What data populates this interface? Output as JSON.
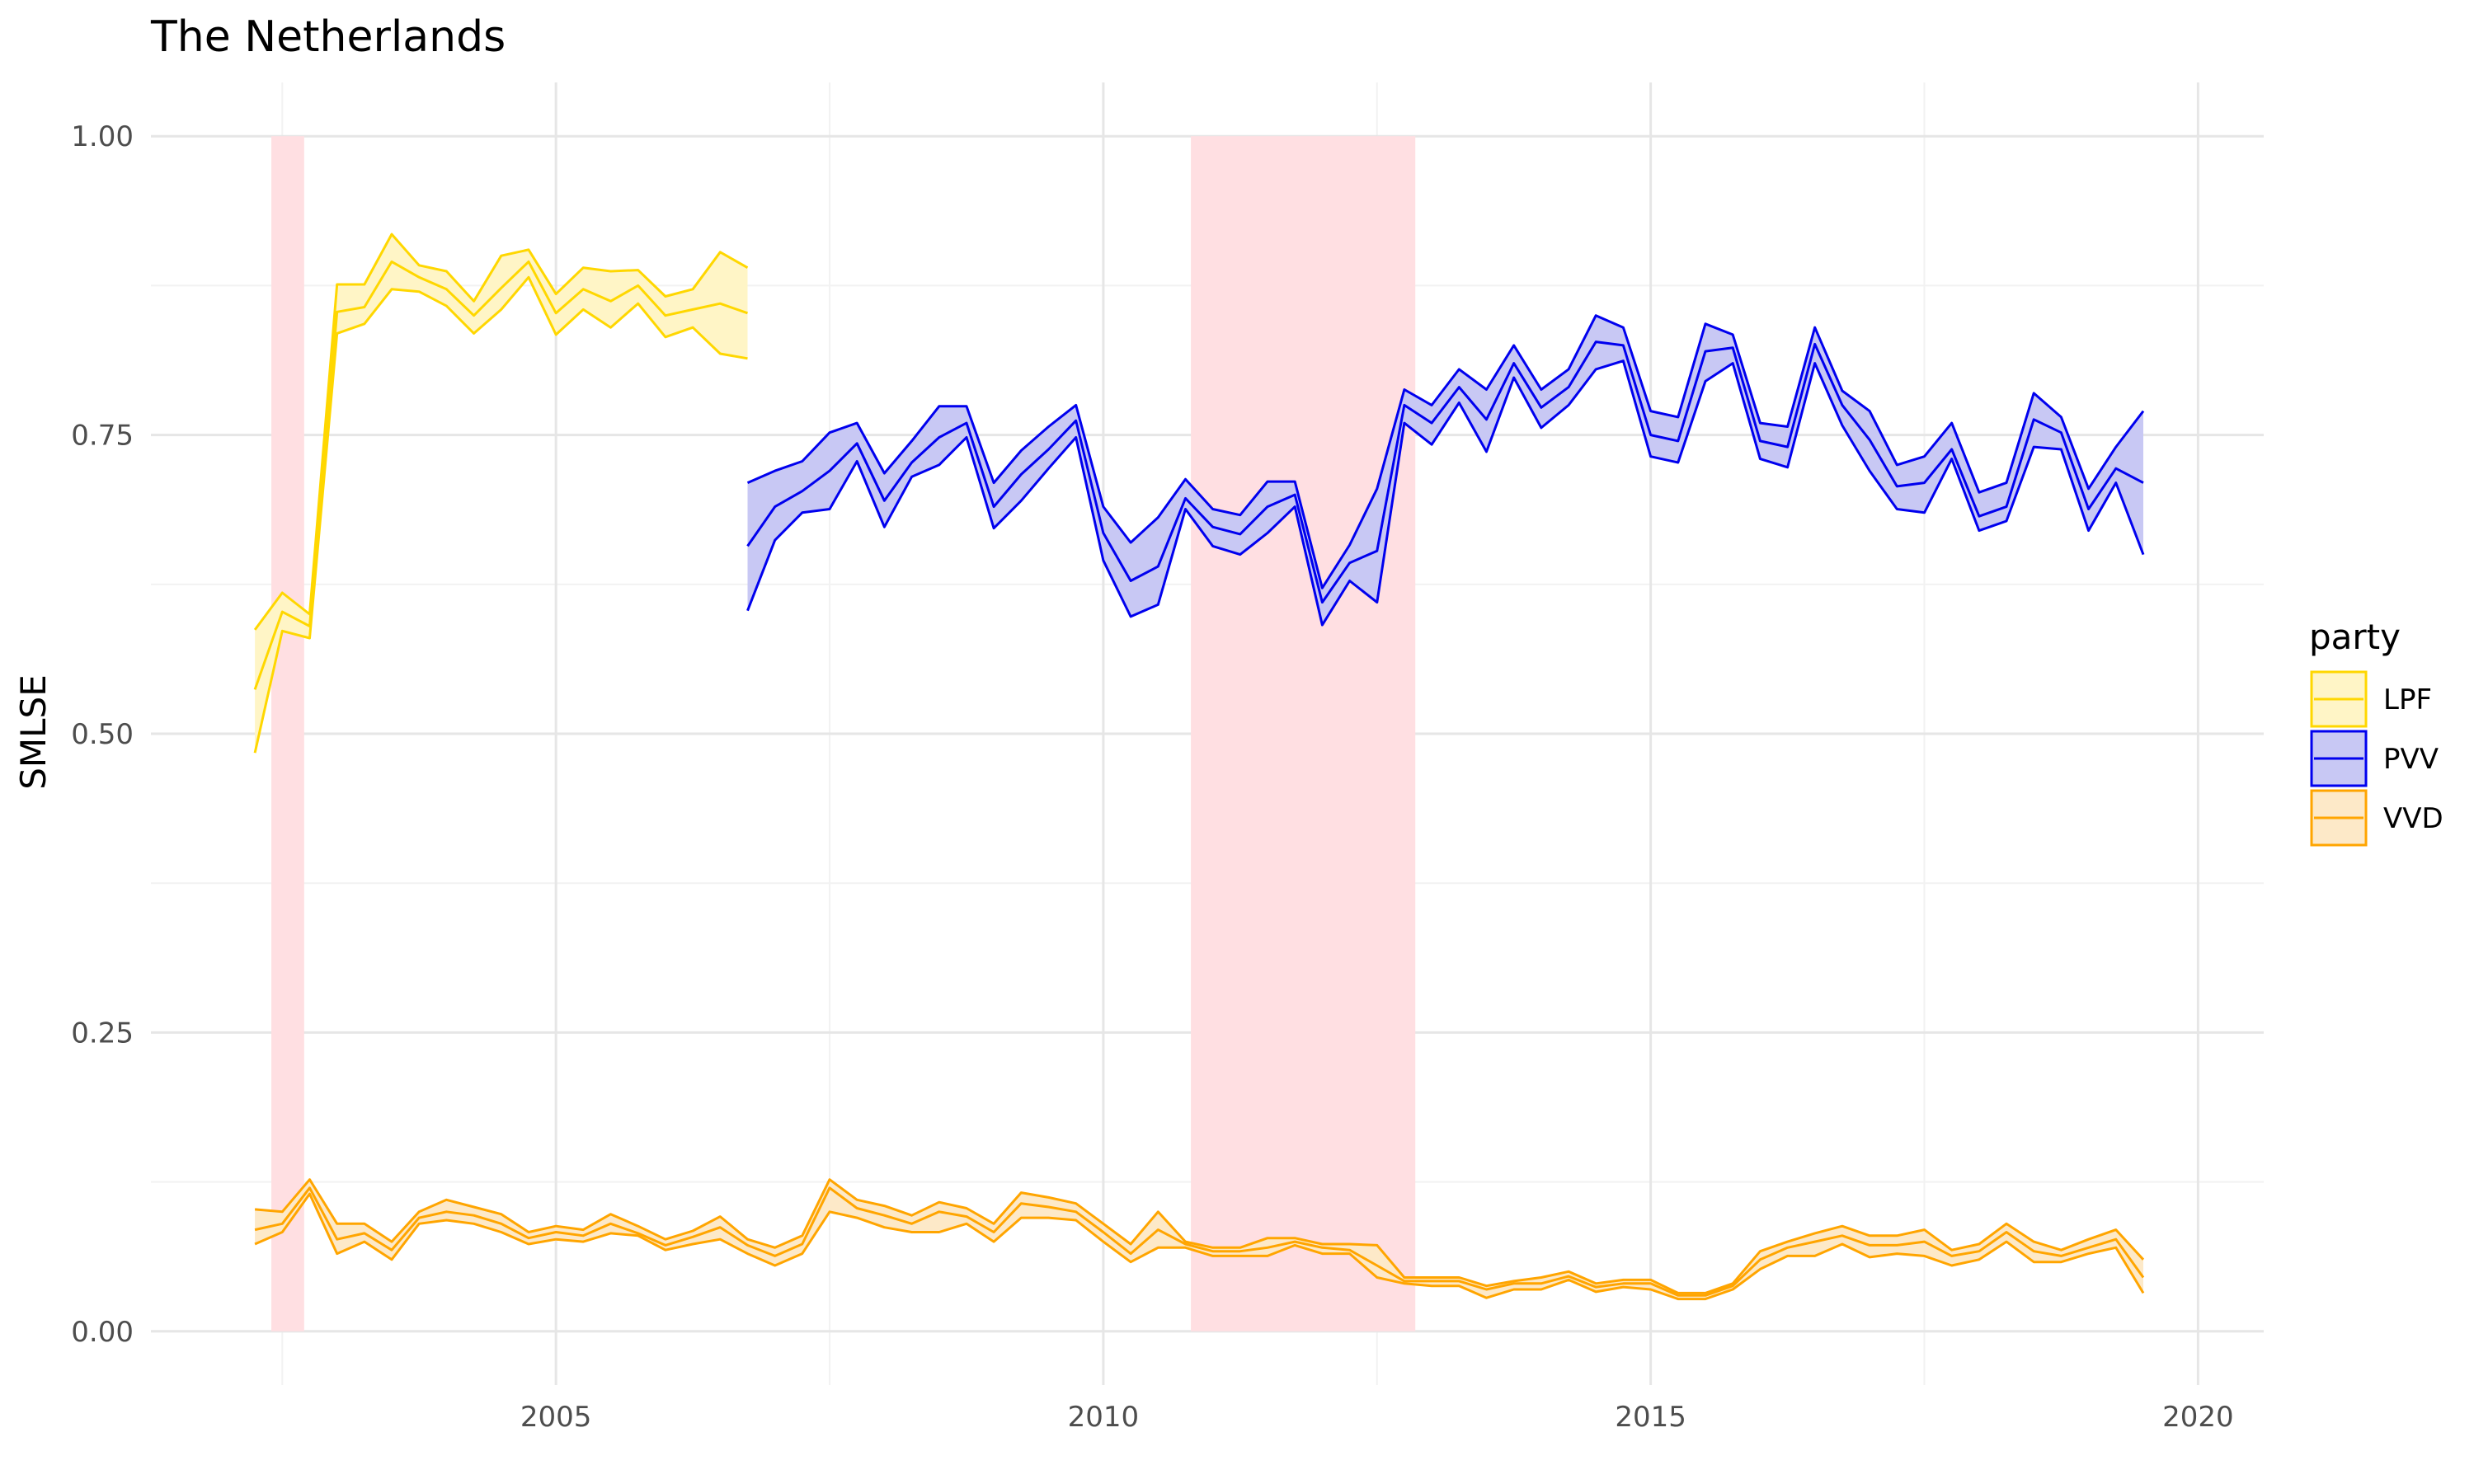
{
  "chart_data": {
    "type": "area",
    "title": "The Netherlands",
    "xlabel": "",
    "ylabel": "SMLSE",
    "xlim": [
      2001.3,
      2020.6
    ],
    "ylim": [
      -0.045,
      1.045
    ],
    "x_ticks": [
      2005,
      2010,
      2015,
      2020
    ],
    "x_tick_labels": [
      "2005",
      "2010",
      "2015",
      "2020"
    ],
    "y_ticks": [
      0,
      0.25,
      0.5,
      0.75,
      1
    ],
    "y_tick_labels": [
      "0.00",
      "0.25",
      "0.50",
      "0.75",
      "1.00"
    ],
    "grid": true,
    "legend": {
      "title": "party",
      "position": "right"
    },
    "shaded_periods": [
      {
        "start": 2002.4,
        "end": 2002.7,
        "color": "#ffdfe2"
      },
      {
        "start": 2010.8,
        "end": 2012.85,
        "color": "#ffdfe2"
      }
    ],
    "series": [
      {
        "name": "LPF",
        "color": "#ffd700",
        "fill": "#fff5c6",
        "x": [
          2002.25,
          2002.5,
          2002.75,
          2003.0,
          2003.25,
          2003.5,
          2003.75,
          2004.0,
          2004.25,
          2004.5,
          2004.75,
          2005.0,
          2005.25,
          2005.5,
          2005.75,
          2006.0,
          2006.25,
          2006.5,
          2006.75
        ],
        "upper": [
          0.587,
          0.618,
          0.6,
          0.876,
          0.876,
          0.918,
          0.892,
          0.887,
          0.862,
          0.9,
          0.905,
          0.868,
          0.89,
          0.887,
          0.888,
          0.866,
          0.872,
          0.903,
          0.89
        ],
        "mid": [
          0.537,
          0.602,
          0.59,
          0.853,
          0.857,
          0.895,
          0.882,
          0.872,
          0.85,
          0.873,
          0.895,
          0.852,
          0.872,
          0.862,
          0.875,
          0.85,
          0.855,
          0.86,
          0.852
        ],
        "lower": [
          0.484,
          0.586,
          0.58,
          0.835,
          0.843,
          0.872,
          0.87,
          0.858,
          0.835,
          0.855,
          0.882,
          0.834,
          0.855,
          0.84,
          0.86,
          0.832,
          0.84,
          0.818,
          0.814
        ]
      },
      {
        "name": "PVV",
        "color": "#0000ee",
        "fill": "#c8c8f4",
        "x": [
          2006.75,
          2007.0,
          2007.25,
          2007.5,
          2007.75,
          2008.0,
          2008.25,
          2008.5,
          2008.75,
          2009.0,
          2009.25,
          2009.5,
          2009.75,
          2010.0,
          2010.25,
          2010.5,
          2010.75,
          2011.0,
          2011.25,
          2011.5,
          2011.75,
          2012.0,
          2012.25,
          2012.5,
          2012.75,
          2013.0,
          2013.25,
          2013.5,
          2013.75,
          2014.0,
          2014.25,
          2014.5,
          2014.75,
          2015.0,
          2015.25,
          2015.5,
          2015.75,
          2016.0,
          2016.25,
          2016.5,
          2016.75,
          2017.0,
          2017.25,
          2017.5,
          2017.75,
          2018.0,
          2018.25,
          2018.5,
          2018.75,
          2019.0,
          2019.25,
          2019.5
        ],
        "upper": [
          0.71,
          0.72,
          0.728,
          0.752,
          0.76,
          0.718,
          0.745,
          0.774,
          0.774,
          0.71,
          0.737,
          0.757,
          0.775,
          0.69,
          0.66,
          0.681,
          0.713,
          0.688,
          0.683,
          0.711,
          0.711,
          0.622,
          0.658,
          0.705,
          0.788,
          0.775,
          0.805,
          0.788,
          0.825,
          0.788,
          0.805,
          0.85,
          0.84,
          0.77,
          0.765,
          0.843,
          0.834,
          0.76,
          0.757,
          0.84,
          0.787,
          0.77,
          0.725,
          0.732,
          0.76,
          0.702,
          0.71,
          0.785,
          0.765,
          0.705,
          0.74,
          0.77
        ],
        "mid": [
          0.657,
          0.69,
          0.703,
          0.72,
          0.743,
          0.695,
          0.727,
          0.748,
          0.76,
          0.69,
          0.717,
          0.738,
          0.762,
          0.668,
          0.628,
          0.64,
          0.697,
          0.673,
          0.667,
          0.69,
          0.7,
          0.61,
          0.643,
          0.653,
          0.775,
          0.76,
          0.79,
          0.763,
          0.81,
          0.773,
          0.79,
          0.828,
          0.825,
          0.75,
          0.745,
          0.82,
          0.823,
          0.745,
          0.74,
          0.826,
          0.775,
          0.746,
          0.707,
          0.71,
          0.738,
          0.682,
          0.69,
          0.763,
          0.752,
          0.688,
          0.722,
          0.71
        ],
        "lower": [
          0.603,
          0.662,
          0.685,
          0.688,
          0.728,
          0.673,
          0.715,
          0.725,
          0.748,
          0.672,
          0.695,
          0.722,
          0.748,
          0.645,
          0.598,
          0.608,
          0.688,
          0.657,
          0.65,
          0.668,
          0.69,
          0.591,
          0.628,
          0.61,
          0.76,
          0.742,
          0.777,
          0.736,
          0.798,
          0.756,
          0.775,
          0.805,
          0.812,
          0.732,
          0.727,
          0.795,
          0.81,
          0.73,
          0.723,
          0.81,
          0.758,
          0.72,
          0.688,
          0.685,
          0.73,
          0.67,
          0.678,
          0.74,
          0.738,
          0.67,
          0.71,
          0.65
        ]
      },
      {
        "name": "VVD",
        "color": "#ffa500",
        "fill": "#fde9c8",
        "x": [
          2002.25,
          2002.5,
          2002.75,
          2003.0,
          2003.25,
          2003.5,
          2003.75,
          2004.0,
          2004.25,
          2004.5,
          2004.75,
          2005.0,
          2005.25,
          2005.5,
          2005.75,
          2006.0,
          2006.25,
          2006.5,
          2006.75,
          2007.0,
          2007.25,
          2007.5,
          2007.75,
          2008.0,
          2008.25,
          2008.5,
          2008.75,
          2009.0,
          2009.25,
          2009.5,
          2009.75,
          2010.0,
          2010.25,
          2010.5,
          2010.75,
          2011.0,
          2011.25,
          2011.5,
          2011.75,
          2012.0,
          2012.25,
          2012.5,
          2012.75,
          2013.0,
          2013.25,
          2013.5,
          2013.75,
          2014.0,
          2014.25,
          2014.5,
          2014.75,
          2015.0,
          2015.25,
          2015.5,
          2015.75,
          2016.0,
          2016.25,
          2016.5,
          2016.75,
          2017.0,
          2017.25,
          2017.5,
          2017.75,
          2018.0,
          2018.25,
          2018.5,
          2018.75,
          2019.0,
          2019.25,
          2019.5
        ],
        "upper": [
          0.102,
          0.1,
          0.127,
          0.09,
          0.09,
          0.075,
          0.1,
          0.11,
          0.104,
          0.098,
          0.083,
          0.088,
          0.085,
          0.098,
          0.088,
          0.077,
          0.084,
          0.096,
          0.077,
          0.07,
          0.08,
          0.127,
          0.11,
          0.105,
          0.097,
          0.108,
          0.103,
          0.09,
          0.116,
          0.112,
          0.107,
          0.09,
          0.073,
          0.1,
          0.075,
          0.07,
          0.07,
          0.078,
          0.078,
          0.073,
          0.073,
          0.072,
          0.045,
          0.045,
          0.045,
          0.038,
          0.042,
          0.045,
          0.05,
          0.04,
          0.043,
          0.043,
          0.032,
          0.032,
          0.04,
          0.067,
          0.075,
          0.082,
          0.088,
          0.08,
          0.08,
          0.085,
          0.068,
          0.073,
          0.09,
          0.075,
          0.068,
          0.077,
          0.085,
          0.06
        ],
        "mid": [
          0.085,
          0.09,
          0.12,
          0.077,
          0.082,
          0.068,
          0.095,
          0.1,
          0.097,
          0.09,
          0.078,
          0.083,
          0.08,
          0.09,
          0.082,
          0.072,
          0.079,
          0.087,
          0.072,
          0.063,
          0.073,
          0.12,
          0.103,
          0.097,
          0.09,
          0.1,
          0.096,
          0.083,
          0.107,
          0.104,
          0.1,
          0.083,
          0.065,
          0.085,
          0.073,
          0.067,
          0.067,
          0.07,
          0.075,
          0.07,
          0.068,
          0.055,
          0.042,
          0.042,
          0.042,
          0.035,
          0.04,
          0.04,
          0.046,
          0.037,
          0.04,
          0.04,
          0.03,
          0.03,
          0.038,
          0.06,
          0.07,
          0.075,
          0.08,
          0.072,
          0.072,
          0.075,
          0.063,
          0.067,
          0.083,
          0.067,
          0.063,
          0.07,
          0.077,
          0.045
        ],
        "lower": [
          0.073,
          0.083,
          0.115,
          0.065,
          0.075,
          0.06,
          0.09,
          0.093,
          0.09,
          0.083,
          0.073,
          0.077,
          0.075,
          0.082,
          0.08,
          0.068,
          0.073,
          0.077,
          0.065,
          0.055,
          0.065,
          0.1,
          0.095,
          0.087,
          0.083,
          0.083,
          0.09,
          0.075,
          0.095,
          0.095,
          0.093,
          0.075,
          0.058,
          0.07,
          0.07,
          0.063,
          0.063,
          0.063,
          0.072,
          0.065,
          0.065,
          0.045,
          0.04,
          0.038,
          0.038,
          0.028,
          0.035,
          0.035,
          0.043,
          0.033,
          0.037,
          0.035,
          0.027,
          0.027,
          0.035,
          0.052,
          0.063,
          0.063,
          0.073,
          0.062,
          0.065,
          0.063,
          0.055,
          0.06,
          0.075,
          0.058,
          0.058,
          0.065,
          0.07,
          0.032
        ]
      }
    ]
  }
}
